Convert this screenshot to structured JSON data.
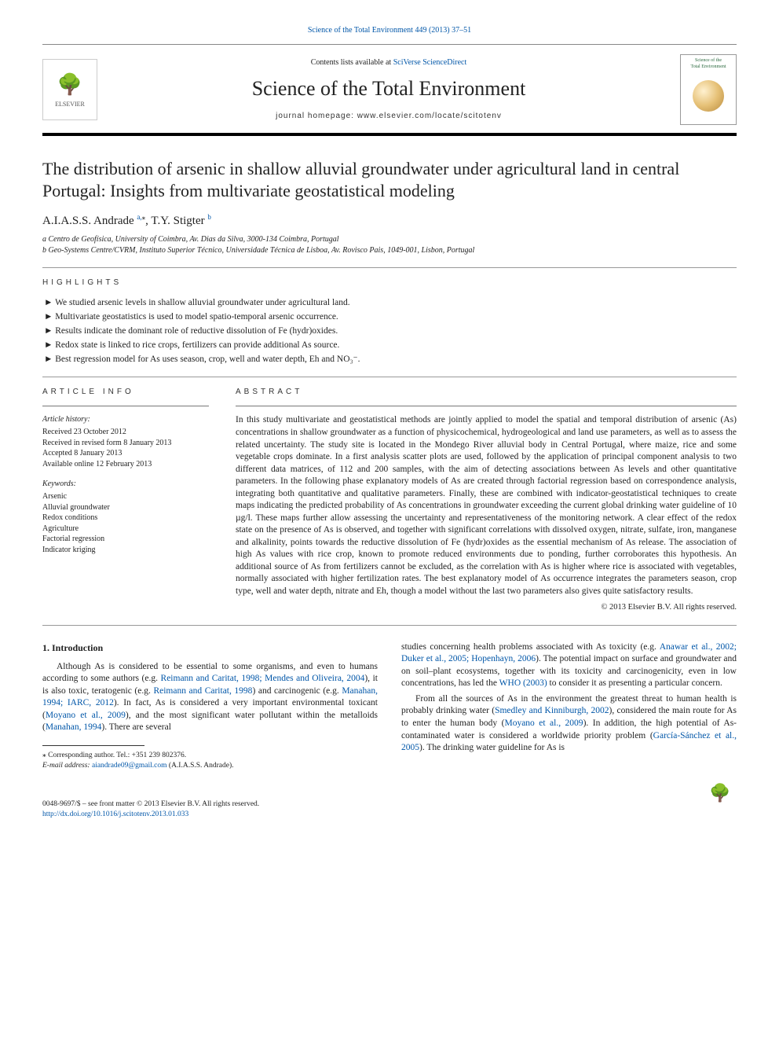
{
  "header": {
    "top_journal_line_prefix": "Science of the Total Environment 449 (2013) 37–51",
    "contents_line_prefix": "Contents lists available at ",
    "contents_link": "SciVerse ScienceDirect",
    "journal_title": "Science of the Total Environment",
    "homepage_label": "journal homepage: www.elsevier.com/locate/scitotenv",
    "publisher_logo_text": "ELSEVIER",
    "cover_caption_1": "Science of the",
    "cover_caption_2": "Total Environment"
  },
  "article": {
    "title": "The distribution of arsenic in shallow alluvial groundwater under agricultural land in central Portugal: Insights from multivariate geostatistical modeling",
    "authors_html": "A.I.A.S.S. Andrade <sup class='link'>a,</sup><sup>⁎</sup>, T.Y. Stigter <sup class='link'>b</sup>",
    "affiliations": [
      "a Centro de Geofísica, University of Coimbra, Av. Dias da Silva, 3000-134 Coimbra, Portugal",
      "b Geo-Systems Centre/CVRM, Instituto Superior Técnico, Universidade Técnica de Lisboa, Av. Rovisco Pais, 1049-001, Lisbon, Portugal"
    ]
  },
  "highlights": {
    "heading": "HIGHLIGHTS",
    "items": [
      "We studied arsenic levels in shallow alluvial groundwater under agricultural land.",
      "Multivariate geostatistics is used to model spatio-temporal arsenic occurrence.",
      "Results indicate the dominant role of reductive dissolution of Fe (hydr)oxides.",
      "Redox state is linked to rice crops, fertilizers can provide additional As source.",
      "Best regression model for As uses season, crop, well and water depth, Eh and NO₃⁻."
    ]
  },
  "article_info": {
    "heading": "ARTICLE INFO",
    "history_head": "Article history:",
    "history": [
      "Received 23 October 2012",
      "Received in revised form 8 January 2013",
      "Accepted 8 January 2013",
      "Available online 12 February 2013"
    ],
    "keywords_head": "Keywords:",
    "keywords": [
      "Arsenic",
      "Alluvial groundwater",
      "Redox conditions",
      "Agriculture",
      "Factorial regression",
      "Indicator kriging"
    ]
  },
  "abstract": {
    "heading": "ABSTRACT",
    "text": "In this study multivariate and geostatistical methods are jointly applied to model the spatial and temporal distribution of arsenic (As) concentrations in shallow groundwater as a function of physicochemical, hydrogeological and land use parameters, as well as to assess the related uncertainty. The study site is located in the Mondego River alluvial body in Central Portugal, where maize, rice and some vegetable crops dominate. In a first analysis scatter plots are used, followed by the application of principal component analysis to two different data matrices, of 112 and 200 samples, with the aim of detecting associations between As levels and other quantitative parameters. In the following phase explanatory models of As are created through factorial regression based on correspondence analysis, integrating both quantitative and qualitative parameters. Finally, these are combined with indicator-geostatistical techniques to create maps indicating the predicted probability of As concentrations in groundwater exceeding the current global drinking water guideline of 10 µg/l. These maps further allow assessing the uncertainty and representativeness of the monitoring network. A clear effect of the redox state on the presence of As is observed, and together with significant correlations with dissolved oxygen, nitrate, sulfate, iron, manganese and alkalinity, points towards the reductive dissolution of Fe (hydr)oxides as the essential mechanism of As release. The association of high As values with rice crop, known to promote reduced environments due to ponding, further corroborates this hypothesis. An additional source of As from fertilizers cannot be excluded, as the correlation with As is higher where rice is associated with vegetables, normally associated with higher fertilization rates. The best explanatory model of As occurrence integrates the parameters season, crop type, well and water depth, nitrate and Eh, though a model without the last two parameters also gives quite satisfactory results.",
    "copyright": "© 2013 Elsevier B.V. All rights reserved."
  },
  "intro": {
    "heading": "1. Introduction",
    "col1_para": "Although As is considered to be essential to some organisms, and even to humans according to some authors (e.g. <a href='#'>Reimann and Caritat, 1998; Mendes and Oliveira, 2004</a>), it is also toxic, teratogenic (e.g. <a href='#'>Reimann and Caritat, 1998</a>) and carcinogenic (e.g. <a href='#'>Manahan, 1994; IARC, 2012</a>). In fact, As is considered a very important environmental toxicant (<a href='#'>Moyano et al., 2009</a>), and the most significant water pollutant within the metalloids (<a href='#'>Manahan, 1994</a>). There are several",
    "col2_para1": "studies concerning health problems associated with As toxicity (e.g. <a href='#'>Anawar et al., 2002; Duker et al., 2005; Hopenhayn, 2006</a>). The potential impact on surface and groundwater and on soil–plant ecosystems, together with its toxicity and carcinogenicity, even in low concentrations, has led the <a href='#'>WHO (2003)</a> to consider it as presenting a particular concern.",
    "col2_para2": "From all the sources of As in the environment the greatest threat to human health is probably drinking water (<a href='#'>Smedley and Kinniburgh, 2002</a>), considered the main route for As to enter the human body (<a href='#'>Moyano et al., 2009</a>). In addition, the high potential of As-contaminated water is considered a worldwide priority problem (<a href='#'>García-Sánchez et al., 2005</a>). The drinking water guideline for As is"
  },
  "footnotes": {
    "corresponding": "⁎ Corresponding author. Tel.: +351 239 802376.",
    "email_label": "E-mail address: ",
    "email": "aiandrade09@gmail.com",
    "email_suffix": " (A.I.A.S.S. Andrade)."
  },
  "footer": {
    "line1": "0048-9697/$ – see front matter © 2013 Elsevier B.V. All rights reserved.",
    "doi": "http://dx.doi.org/10.1016/j.scitotenv.2013.01.033"
  },
  "colors": {
    "link": "#0056a8",
    "text": "#222222",
    "rule": "#777777",
    "logo_orange": "#e67a1a"
  }
}
